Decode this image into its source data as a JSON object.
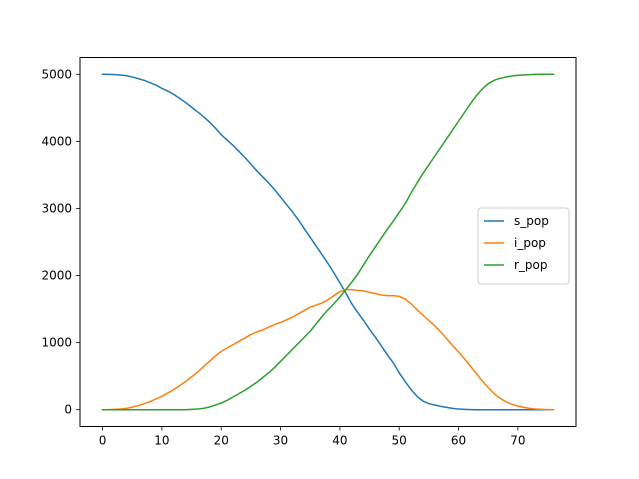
{
  "chart_data": {
    "type": "line",
    "title": "",
    "xlabel": "",
    "ylabel": "",
    "xlim": [
      -3.8,
      79.8
    ],
    "ylim": [
      -250,
      5250
    ],
    "xticks": [
      0,
      10,
      20,
      30,
      40,
      50,
      60,
      70
    ],
    "yticks": [
      0,
      1000,
      2000,
      3000,
      4000,
      5000
    ],
    "grid": false,
    "legend_position": "center-right",
    "x": [
      0,
      1,
      2,
      3,
      4,
      5,
      6,
      7,
      8,
      9,
      10,
      11,
      12,
      13,
      14,
      15,
      16,
      17,
      18,
      19,
      20,
      21,
      22,
      23,
      24,
      25,
      26,
      27,
      28,
      29,
      30,
      31,
      32,
      33,
      34,
      35,
      36,
      37,
      38,
      39,
      40,
      41,
      42,
      43,
      44,
      45,
      46,
      47,
      48,
      49,
      50,
      51,
      52,
      53,
      54,
      55,
      56,
      57,
      58,
      59,
      60,
      61,
      62,
      63,
      64,
      65,
      66,
      67,
      68,
      69,
      70,
      71,
      72,
      73,
      74,
      75,
      76
    ],
    "series": [
      {
        "name": "s_pop",
        "color": "#1f77b4",
        "values": [
          5000,
          4998,
          4995,
          4990,
          4980,
          4960,
          4935,
          4910,
          4875,
          4840,
          4790,
          4750,
          4700,
          4640,
          4580,
          4510,
          4440,
          4370,
          4290,
          4200,
          4100,
          4020,
          3940,
          3850,
          3760,
          3660,
          3560,
          3470,
          3380,
          3280,
          3170,
          3060,
          2950,
          2830,
          2700,
          2570,
          2440,
          2310,
          2180,
          2040,
          1890,
          1740,
          1580,
          1450,
          1330,
          1200,
          1080,
          950,
          820,
          700,
          550,
          420,
          300,
          200,
          130,
          90,
          70,
          50,
          35,
          20,
          10,
          5,
          2,
          0,
          0,
          0,
          0,
          0,
          0,
          0,
          0,
          0,
          0,
          0,
          0,
          0,
          0
        ]
      },
      {
        "name": "i_pop",
        "color": "#ff7f0e",
        "values": [
          0,
          2,
          5,
          10,
          20,
          40,
          60,
          90,
          120,
          160,
          200,
          250,
          300,
          360,
          420,
          490,
          560,
          640,
          720,
          800,
          870,
          920,
          970,
          1020,
          1070,
          1120,
          1160,
          1190,
          1230,
          1270,
          1300,
          1340,
          1380,
          1430,
          1480,
          1530,
          1560,
          1590,
          1640,
          1700,
          1760,
          1790,
          1790,
          1780,
          1770,
          1750,
          1730,
          1710,
          1700,
          1700,
          1690,
          1650,
          1580,
          1490,
          1410,
          1330,
          1250,
          1160,
          1060,
          960,
          860,
          760,
          650,
          540,
          430,
          330,
          240,
          170,
          120,
          80,
          55,
          35,
          20,
          10,
          5,
          2,
          0
        ]
      },
      {
        "name": "r_pop",
        "color": "#2ca02c",
        "values": [
          0,
          0,
          0,
          0,
          0,
          0,
          0,
          0,
          0,
          0,
          0,
          0,
          0,
          0,
          0,
          5,
          10,
          20,
          40,
          70,
          100,
          140,
          190,
          240,
          290,
          350,
          410,
          480,
          550,
          630,
          720,
          810,
          900,
          990,
          1080,
          1170,
          1280,
          1390,
          1490,
          1580,
          1680,
          1790,
          1900,
          2020,
          2160,
          2300,
          2430,
          2560,
          2690,
          2810,
          2940,
          3070,
          3230,
          3380,
          3520,
          3650,
          3780,
          3910,
          4040,
          4170,
          4300,
          4430,
          4560,
          4680,
          4780,
          4860,
          4910,
          4940,
          4960,
          4975,
          4985,
          4990,
          4995,
          4998,
          5000,
          5000,
          5000
        ]
      }
    ]
  }
}
